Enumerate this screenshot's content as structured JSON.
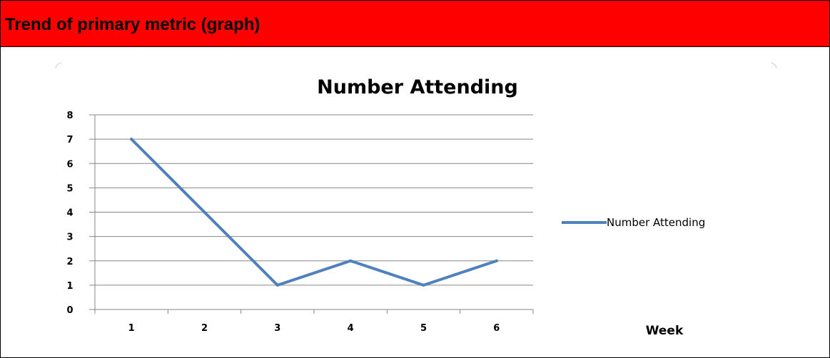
{
  "header": {
    "title": "Trend of primary metric (graph)"
  },
  "colors": {
    "header_bg": "#ff0000",
    "series": "#4f81bd",
    "gridline": "#868686",
    "text": "#000000"
  },
  "chart_data": {
    "type": "line",
    "title": "Number Attending",
    "xlabel": "Week",
    "ylabel": "",
    "categories": [
      "1",
      "2",
      "3",
      "4",
      "5",
      "6"
    ],
    "series": [
      {
        "name": "Number Attending",
        "values": [
          7,
          4,
          1,
          2,
          1,
          2
        ]
      }
    ],
    "ylim": [
      0,
      8
    ],
    "yticks": [
      "0",
      "1",
      "2",
      "3",
      "4",
      "5",
      "6",
      "7",
      "8"
    ],
    "grid": true,
    "legend": "right"
  }
}
